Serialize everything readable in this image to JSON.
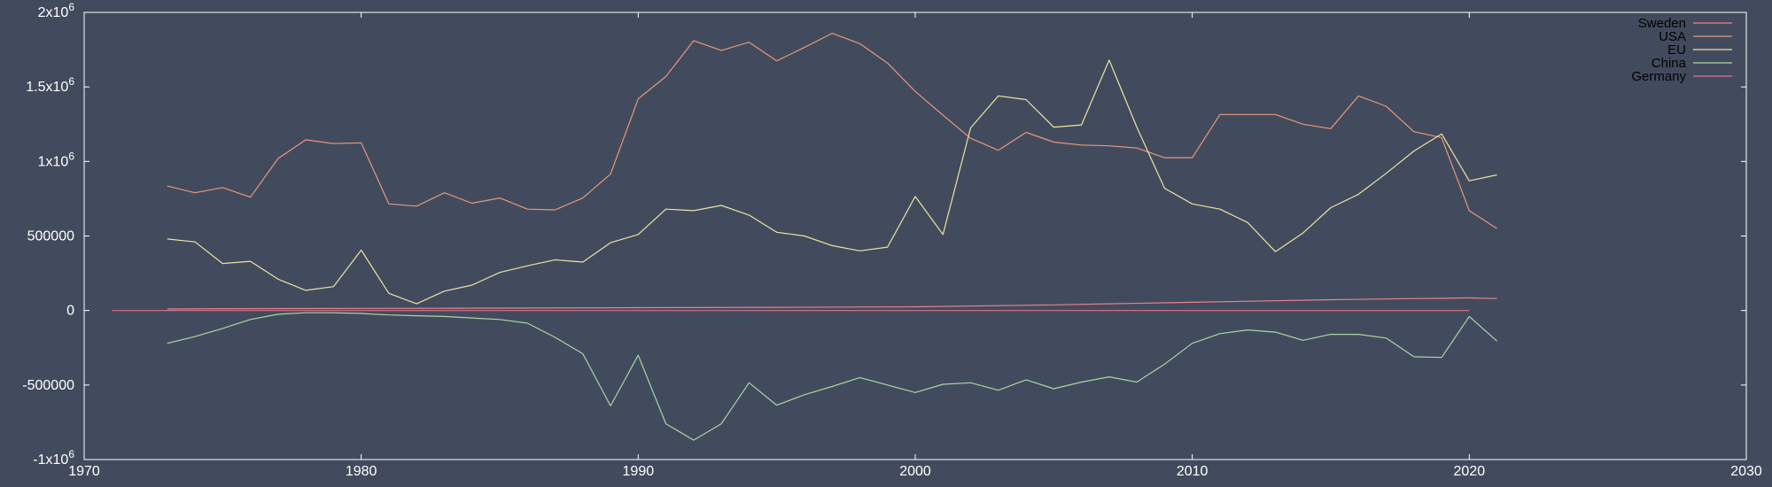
{
  "chart_data": {
    "type": "line",
    "title": "",
    "xlabel": "",
    "ylabel": "",
    "xlim": [
      1970,
      2030
    ],
    "ylim": [
      -1000000,
      2000000
    ],
    "grid": false,
    "legend_position": "top-right",
    "colors": {
      "background": "#424b5d",
      "border": "#ffffff",
      "tick_text": "#ffffff",
      "legend_text": "#000000"
    },
    "x_ticks": [
      {
        "value": 1970,
        "label": "1970"
      },
      {
        "value": 1980,
        "label": "1980"
      },
      {
        "value": 1990,
        "label": "1990"
      },
      {
        "value": 2000,
        "label": "2000"
      },
      {
        "value": 2010,
        "label": "2010"
      },
      {
        "value": 2020,
        "label": "2020"
      },
      {
        "value": 2030,
        "label": "2030"
      }
    ],
    "y_ticks": [
      {
        "value": 2000000,
        "base": "2x10",
        "exp": "6"
      },
      {
        "value": 1500000,
        "base": "1.5x10",
        "exp": "6"
      },
      {
        "value": 1000000,
        "base": "1x10",
        "exp": "6"
      },
      {
        "value": 500000,
        "base": "500000",
        "exp": ""
      },
      {
        "value": 0,
        "base": "0",
        "exp": ""
      },
      {
        "value": -500000,
        "base": "-500000",
        "exp": ""
      },
      {
        "value": -1000000,
        "base": "-1x10",
        "exp": "6"
      }
    ],
    "series": [
      {
        "name": "Sweden",
        "color": "#e8828e",
        "x": [
          1973,
          1975,
          1980,
          1985,
          1990,
          1995,
          2000,
          2005,
          2010,
          2015,
          2018,
          2019,
          2020,
          2021
        ],
        "y": [
          10000,
          12000,
          14000,
          16000,
          19000,
          21000,
          25000,
          38000,
          55000,
          72000,
          80000,
          82000,
          85000,
          80000
        ]
      },
      {
        "name": "USA",
        "color": "#e8967a",
        "x": [
          1973,
          1974,
          1975,
          1976,
          1977,
          1978,
          1979,
          1980,
          1981,
          1982,
          1983,
          1984,
          1985,
          1986,
          1987,
          1988,
          1989,
          1990,
          1991,
          1992,
          1993,
          1994,
          1995,
          1996,
          1997,
          1998,
          1999,
          2000,
          2001,
          2002,
          2003,
          2004,
          2005,
          2006,
          2007,
          2008,
          2009,
          2010,
          2011,
          2012,
          2013,
          2014,
          2015,
          2016,
          2017,
          2018,
          2019,
          2020,
          2021
        ],
        "y": [
          835000,
          790000,
          825000,
          760000,
          1020000,
          1145000,
          1120000,
          1125000,
          715000,
          700000,
          790000,
          720000,
          755000,
          680000,
          675000,
          755000,
          915000,
          1420000,
          1570000,
          1810000,
          1745000,
          1800000,
          1675000,
          1765000,
          1860000,
          1790000,
          1660000,
          1470000,
          1310000,
          1155000,
          1075000,
          1195000,
          1130000,
          1110000,
          1105000,
          1090000,
          1025000,
          1025000,
          1315000,
          1315000,
          1315000,
          1250000,
          1220000,
          1440000,
          1370000,
          1200000,
          1160000,
          670000,
          550000
        ]
      },
      {
        "name": "EU",
        "color": "#ebe3a0",
        "x": [
          1973,
          1974,
          1975,
          1976,
          1977,
          1978,
          1979,
          1980,
          1981,
          1982,
          1983,
          1984,
          1985,
          1986,
          1987,
          1988,
          1989,
          1990,
          1991,
          1992,
          1993,
          1994,
          1995,
          1996,
          1997,
          1998,
          1999,
          2000,
          2001,
          2002,
          2003,
          2004,
          2005,
          2006,
          2007,
          2008,
          2009,
          2010,
          2011,
          2012,
          2013,
          2014,
          2015,
          2016,
          2017,
          2018,
          2019,
          2020,
          2021
        ],
        "y": [
          480000,
          460000,
          315000,
          330000,
          210000,
          135000,
          160000,
          405000,
          115000,
          45000,
          130000,
          170000,
          255000,
          300000,
          340000,
          325000,
          455000,
          510000,
          680000,
          670000,
          705000,
          640000,
          525000,
          500000,
          435000,
          400000,
          425000,
          765000,
          510000,
          1225000,
          1440000,
          1415000,
          1230000,
          1245000,
          1680000,
          1230000,
          820000,
          715000,
          680000,
          590000,
          395000,
          520000,
          690000,
          780000,
          920000,
          1070000,
          1185000,
          870000,
          910000
        ]
      },
      {
        "name": "China",
        "color": "#a9d6a1",
        "x": [
          1973,
          1974,
          1975,
          1976,
          1977,
          1978,
          1979,
          1980,
          1981,
          1982,
          1983,
          1984,
          1985,
          1986,
          1987,
          1988,
          1989,
          1990,
          1991,
          1992,
          1993,
          1994,
          1995,
          1996,
          1997,
          1998,
          1999,
          2000,
          2001,
          2002,
          2003,
          2004,
          2005,
          2006,
          2007,
          2008,
          2009,
          2010,
          2011,
          2012,
          2013,
          2014,
          2015,
          2016,
          2017,
          2018,
          2019,
          2020,
          2021
        ],
        "y": [
          -220000,
          -175000,
          -120000,
          -60000,
          -25000,
          -15000,
          -15000,
          -20000,
          -30000,
          -35000,
          -40000,
          -50000,
          -60000,
          -85000,
          -180000,
          -290000,
          -640000,
          -300000,
          -760000,
          -870000,
          -760000,
          -485000,
          -635000,
          -565000,
          -510000,
          -450000,
          -500000,
          -550000,
          -495000,
          -485000,
          -535000,
          -465000,
          -525000,
          -480000,
          -445000,
          -480000,
          -360000,
          -220000,
          -155000,
          -130000,
          -145000,
          -200000,
          -160000,
          -160000,
          -185000,
          -310000,
          -315000,
          -40000,
          -205000
        ]
      },
      {
        "name": "Germany",
        "color": "#d9718a",
        "x": [
          1971,
          1980,
          1990,
          2000,
          2010,
          2020
        ],
        "y": [
          0,
          0,
          0,
          0,
          0,
          0
        ]
      }
    ]
  }
}
